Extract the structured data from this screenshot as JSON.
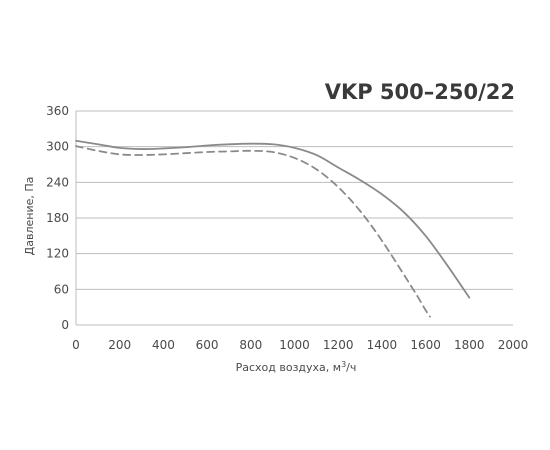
{
  "chart_data": {
    "type": "line",
    "title": "VKP 500–250/22",
    "xlabel": "Расход воздуха, м³/ч",
    "ylabel": "Давление, Па",
    "xlim": [
      0,
      2000
    ],
    "ylim": [
      0,
      360
    ],
    "xticks": [
      "0",
      "200",
      "400",
      "600",
      "800",
      "1000",
      "1200",
      "1400",
      "1600",
      "1800",
      "2000"
    ],
    "yticks": [
      "0",
      "60",
      "120",
      "180",
      "240",
      "300",
      "360"
    ],
    "grid": "horizontal",
    "series": [
      {
        "style": "solid",
        "color": "#8a8a8a",
        "x": [
          0,
          100,
          200,
          300,
          400,
          500,
          600,
          700,
          800,
          900,
          1000,
          1100,
          1200,
          1300,
          1400,
          1500,
          1600,
          1700,
          1800
        ],
        "y": [
          310,
          304,
          298,
          296,
          297,
          299,
          302,
          304,
          305,
          304,
          298,
          286,
          265,
          244,
          220,
          190,
          150,
          100,
          46
        ]
      },
      {
        "style": "dashed",
        "color": "#8a8a8a",
        "x": [
          0,
          100,
          200,
          300,
          400,
          500,
          600,
          700,
          800,
          900,
          1000,
          1100,
          1200,
          1300,
          1400,
          1500,
          1560,
          1600,
          1620
        ],
        "y": [
          301,
          293,
          287,
          286,
          287,
          289,
          291,
          292,
          293,
          291,
          281,
          262,
          232,
          192,
          142,
          85,
          50,
          25,
          14
        ]
      }
    ]
  }
}
